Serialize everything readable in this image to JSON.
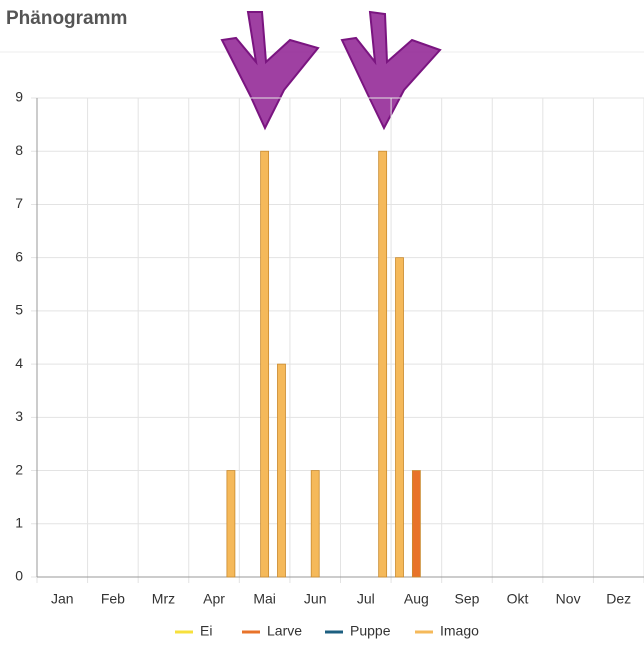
{
  "chart_data": {
    "type": "bar",
    "title": "Phänogramm",
    "categories": [
      null,
      "Jan",
      null,
      null,
      "Feb",
      null,
      null,
      "Mrz",
      null,
      null,
      "Apr",
      null,
      null,
      "Mai",
      null,
      null,
      "Jun",
      null,
      null,
      "Jul",
      null,
      null,
      "Aug",
      null,
      null,
      "Sep",
      null,
      null,
      "Okt",
      null,
      null,
      "Nov",
      null,
      null,
      "Dez",
      null
    ],
    "series": [
      {
        "name": "Ei",
        "color": "#f7e03c",
        "values": [
          0,
          0,
          0,
          0,
          0,
          0,
          0,
          0,
          0,
          0,
          0,
          0,
          0,
          0,
          0,
          0,
          0,
          0,
          0,
          0,
          0,
          0,
          0,
          0,
          0,
          0,
          0,
          0,
          0,
          0,
          0,
          0,
          0,
          0,
          0,
          0
        ]
      },
      {
        "name": "Larve",
        "color": "#e8732a",
        "values": [
          0,
          0,
          0,
          0,
          0,
          0,
          0,
          0,
          0,
          0,
          0,
          0,
          0,
          0,
          0,
          0,
          0,
          0,
          0,
          0,
          0,
          0,
          2,
          0,
          0,
          0,
          0,
          0,
          0,
          0,
          0,
          0,
          0,
          0,
          0,
          0
        ]
      },
      {
        "name": "Puppe",
        "color": "#1d5f80",
        "values": [
          0,
          0,
          0,
          0,
          0,
          0,
          0,
          0,
          0,
          0,
          0,
          0,
          0,
          0,
          0,
          0,
          0,
          0,
          0,
          0,
          0,
          0,
          0,
          0,
          0,
          0,
          0,
          0,
          0,
          0,
          0,
          0,
          0,
          0,
          0,
          0
        ]
      },
      {
        "name": "Imago",
        "color": "#f5b95a",
        "values": [
          0,
          0,
          0,
          0,
          0,
          0,
          0,
          0,
          0,
          0,
          0,
          2,
          0,
          8,
          4,
          0,
          2,
          0,
          0,
          0,
          8,
          6,
          0,
          0,
          0,
          0,
          0,
          0,
          0,
          0,
          0,
          0,
          0,
          0,
          0,
          0
        ]
      }
    ],
    "ylim": [
      0,
      9
    ],
    "yticks": [
      0,
      1,
      2,
      3,
      4,
      5,
      6,
      7,
      8,
      9
    ],
    "grid": true,
    "stacked": true,
    "legend": "bottom"
  }
}
